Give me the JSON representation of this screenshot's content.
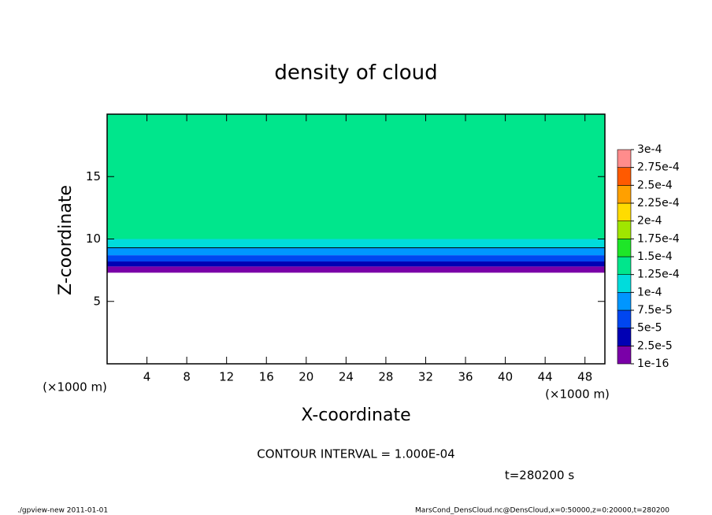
{
  "chart_data": {
    "type": "contour",
    "title": "density of cloud",
    "xlabel": "X-coordinate",
    "ylabel": "Z-coordinate",
    "x_unit_left": "(×1000 m)",
    "x_unit_right": "(×1000 m)",
    "xlim": [
      0,
      50
    ],
    "xticks": [
      4,
      8,
      12,
      16,
      20,
      24,
      28,
      32,
      36,
      40,
      44,
      48
    ],
    "ylim": [
      0,
      20
    ],
    "yticks": [
      5,
      10,
      15
    ],
    "zbins": [
      7.3,
      7.8,
      8.2,
      8.7,
      9.3,
      10,
      20
    ],
    "values": [
      1.5e-05,
      3.5e-05,
      6e-05,
      8.5e-05,
      0.00011,
      0.00014
    ],
    "contour_level": 0.0001,
    "levels": [
      {
        "value": 1e-16,
        "label": "1e-16"
      },
      {
        "value": 2.5e-05,
        "label": "2.5e-5"
      },
      {
        "value": 5e-05,
        "label": "5e-5"
      },
      {
        "value": 7.5e-05,
        "label": "7.5e-5"
      },
      {
        "value": 0.0001,
        "label": "1e-4"
      },
      {
        "value": 0.000125,
        "label": "1.25e-4"
      },
      {
        "value": 0.00015,
        "label": "1.5e-4"
      },
      {
        "value": 0.000175,
        "label": "1.75e-4"
      },
      {
        "value": 0.0002,
        "label": "2e-4"
      },
      {
        "value": 0.000225,
        "label": "2.25e-4"
      },
      {
        "value": 0.00025,
        "label": "2.5e-4"
      },
      {
        "value": 0.000275,
        "label": "2.75e-4"
      },
      {
        "value": 0.0003,
        "label": "3e-4"
      }
    ],
    "colors": [
      "#7a00a8",
      "#0000b4",
      "#0046f0",
      "#0096ff",
      "#00dcdc",
      "#00e68c",
      "#1ee628",
      "#a0e600",
      "#ffdc00",
      "#ffa000",
      "#ff5a00",
      "#ff8c8c"
    ],
    "contour_interval": "CONTOUR INTERVAL = 1.000E-04",
    "time": "t=280200 s",
    "footer_left": "./gpview-new  2011-01-01",
    "footer_right": "MarsCond_DensCloud.nc@DensCloud,x=0:50000,z=0:20000,t=280200"
  }
}
